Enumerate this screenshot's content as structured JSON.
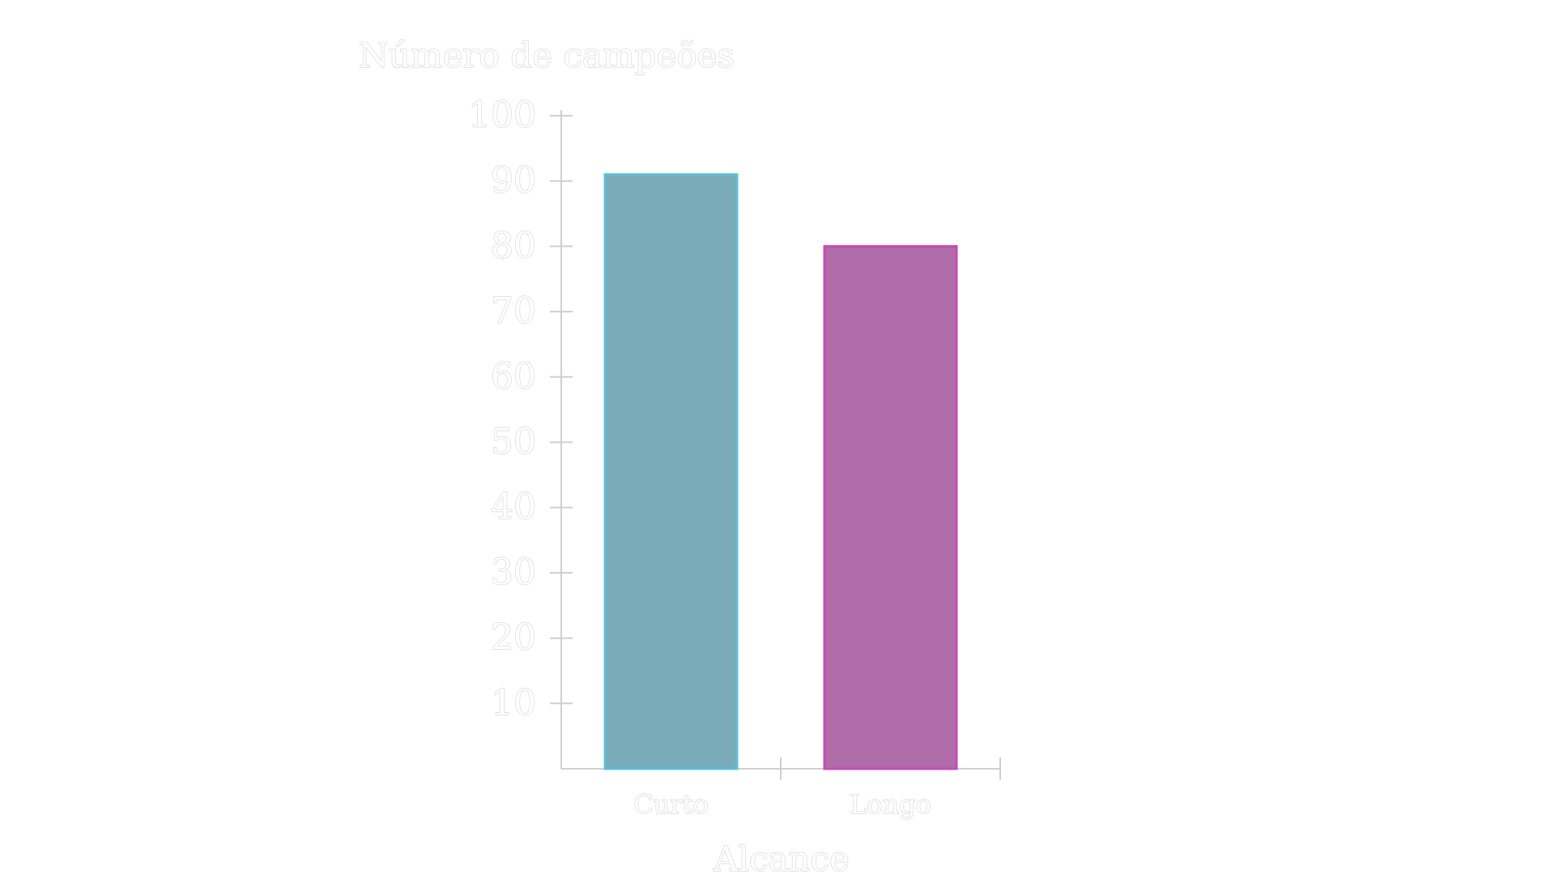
{
  "chart_data": {
    "type": "bar",
    "categories": [
      "Curto",
      "Longo"
    ],
    "values": [
      91,
      80
    ],
    "ylabel": "Número de campeões",
    "xlabel": "Alcance",
    "ylim": [
      0,
      100
    ],
    "yticks": [
      10,
      20,
      30,
      40,
      50,
      60,
      70,
      80,
      90,
      100
    ],
    "grid": false,
    "legend": "none",
    "colors": {
      "fills": [
        "#79acb8",
        "#b06ca8"
      ],
      "strokes": [
        "#5cc0d8",
        "#c44cb8"
      ],
      "axis": "#cfcfcf",
      "text_stroke": "#d2d2d2"
    }
  }
}
